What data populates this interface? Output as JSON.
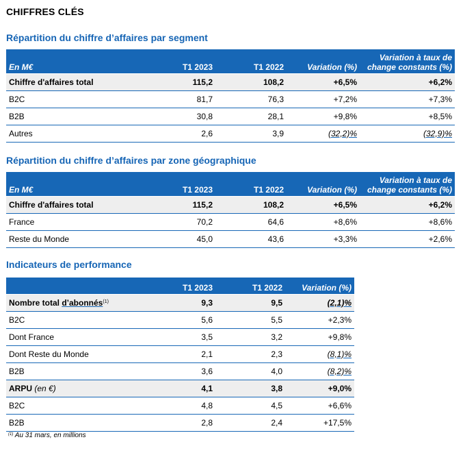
{
  "page_title": "CHIFFRES CLÉS",
  "segment": {
    "title": "Répartition du chiffre d’affaires par segment",
    "headers": {
      "label": "En M€",
      "c1": "T1 2023",
      "c2": "T1 2022",
      "c3": "Variation (%)",
      "c4_line1": "Variation à taux de",
      "c4_line2": "change constants (%)"
    },
    "rows": [
      {
        "label": "Chiffre d'affaires total",
        "c1": "115,2",
        "c2": "108,2",
        "c3": "+6,5%",
        "c4": "+6,2%"
      },
      {
        "label": "B2C",
        "c1": "81,7",
        "c2": "76,3",
        "c3": "+7,2%",
        "c4": "+7,3%"
      },
      {
        "label": "B2B",
        "c1": "30,8",
        "c2": "28,1",
        "c3": "+9,8%",
        "c4": "+8,5%"
      },
      {
        "label": "Autres",
        "c1": "2,6",
        "c2": "3,9",
        "c3": "(32,2)%",
        "c4": "(32,9)%"
      }
    ]
  },
  "geo": {
    "title": "Répartition du chiffre d’affaires par zone géographique",
    "headers": {
      "label": "En M€",
      "c1": "T1 2023",
      "c2": "T1 2022",
      "c3": "Variation (%)",
      "c4_line1": "Variation à taux de",
      "c4_line2": "change constants (%)"
    },
    "rows": [
      {
        "label": "Chiffre d'affaires total",
        "c1": "115,2",
        "c2": "108,2",
        "c3": "+6,5%",
        "c4": "+6,2%"
      },
      {
        "label": "France",
        "c1": "70,2",
        "c2": "64,6",
        "c3": "+8,6%",
        "c4": "+8,6%"
      },
      {
        "label": "Reste du Monde",
        "c1": "45,0",
        "c2": "43,6",
        "c3": "+3,3%",
        "c4": "+2,6%"
      }
    ]
  },
  "kpi": {
    "title": "Indicateurs de performance",
    "headers": {
      "c1": "T1 2023",
      "c2": "T1 2022",
      "c3": "Variation (%)"
    },
    "rows": [
      {
        "label_a": "Nombre total ",
        "label_b": "d’abonnés",
        "sup": "(1)",
        "c1": "9,3",
        "c2": "9,5",
        "c3": "(2,1)%"
      },
      {
        "label": "B2C",
        "c1": "5,6",
        "c2": "5,5",
        "c3": "+2,3%"
      },
      {
        "label": "Dont France",
        "c1": "3,5",
        "c2": "3,2",
        "c3": "+9,8%"
      },
      {
        "label": "Dont Reste du Monde",
        "c1": "2,1",
        "c2": "2,3",
        "c3": "(8,1)%"
      },
      {
        "label": "B2B",
        "c1": "3,6",
        "c2": "4,0",
        "c3": "(8,2)%"
      },
      {
        "label_a": "ARPU ",
        "label_b": "(en €)",
        "c1": "4,1",
        "c2": "3,8",
        "c3": "+9,0%"
      },
      {
        "label": "B2C",
        "c1": "4,8",
        "c2": "4,5",
        "c3": "+6,6%"
      },
      {
        "label": "B2B",
        "c1": "2,8",
        "c2": "2,4",
        "c3": "+17,5%"
      }
    ]
  },
  "footnote": {
    "sup": "(1)",
    "text": " Au 31 mars, en millions"
  }
}
